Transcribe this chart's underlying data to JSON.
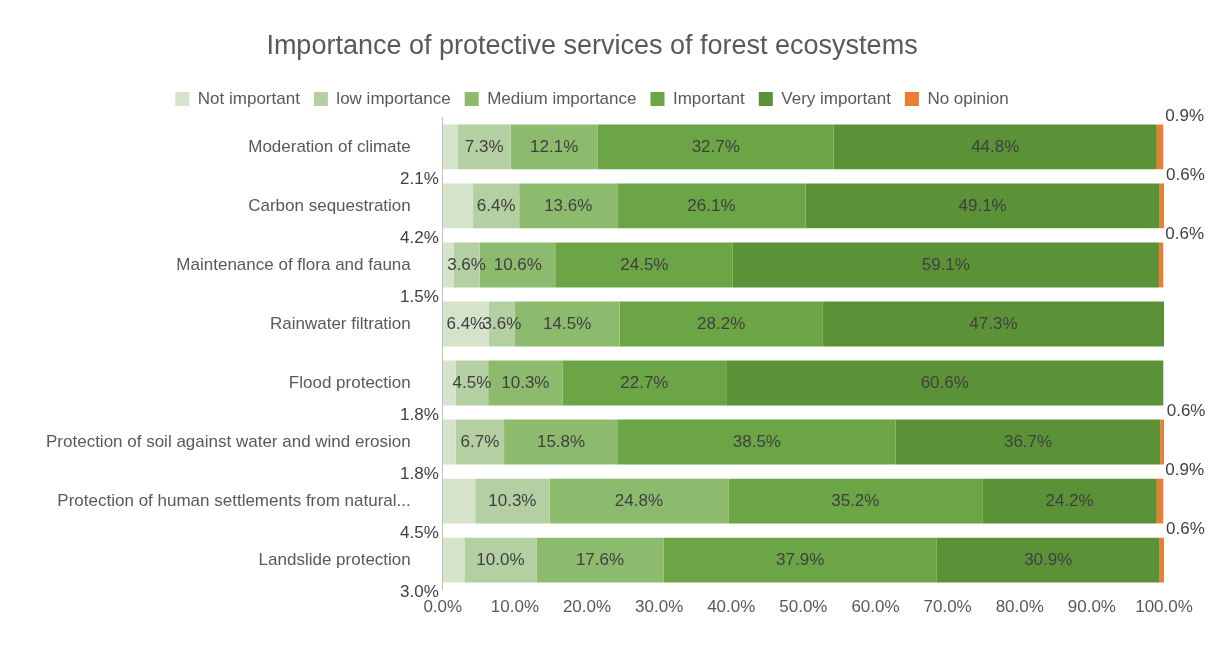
{
  "chart_data": {
    "type": "bar",
    "orientation": "horizontal",
    "stacked": true,
    "title": "Importance of protective services of forest ecosystems",
    "legend": "top",
    "grid": false,
    "data_labels": true,
    "categories": [
      "Moderation of climate",
      "Carbon sequestration",
      "Maintenance of flora and fauna",
      "Rainwater filtration",
      "Flood protection",
      "Protection of soil against water and wind erosion",
      "Protection of human settlements from natural...",
      "Landslide protection"
    ],
    "xlim": [
      0,
      100
    ],
    "xticks": [
      {
        "value": 0,
        "label": "0.0%"
      },
      {
        "value": 10,
        "label": "10.0%"
      },
      {
        "value": 20,
        "label": "20.0%"
      },
      {
        "value": 30,
        "label": "30.0%"
      },
      {
        "value": 40,
        "label": "40.0%"
      },
      {
        "value": 50,
        "label": "50.0%"
      },
      {
        "value": 60,
        "label": "60.0%"
      },
      {
        "value": 70,
        "label": "70.0%"
      },
      {
        "value": 80,
        "label": "80.0%"
      },
      {
        "value": 90,
        "label": "90.0%"
      },
      {
        "value": 100,
        "label": "100.0%"
      }
    ],
    "series": [
      {
        "name": "Not important",
        "color": "#d5e3cb",
        "values": [
          2.1,
          4.2,
          1.5,
          6.4,
          1.8,
          1.8,
          4.5,
          3.0
        ],
        "value_labels": [
          "2.1%",
          "4.2%",
          "1.5%",
          "6.4%",
          "1.8%",
          "1.8%",
          "4.5%",
          "3.0%"
        ]
      },
      {
        "name": "low importance",
        "color": "#b4cfa2",
        "values": [
          7.3,
          6.4,
          3.6,
          3.6,
          4.5,
          6.7,
          10.3,
          10.0
        ],
        "value_labels": [
          "7.3%",
          "6.4%",
          "3.6%",
          "3.6%",
          "4.5%",
          "6.7%",
          "10.3%",
          "10.0%"
        ]
      },
      {
        "name": "Medium importance",
        "color": "#8dbb6e",
        "values": [
          12.1,
          13.6,
          10.6,
          14.5,
          10.3,
          15.8,
          24.8,
          17.6
        ],
        "value_labels": [
          "12.1%",
          "13.6%",
          "10.6%",
          "14.5%",
          "10.3%",
          "15.8%",
          "24.8%",
          "17.6%"
        ]
      },
      {
        "name": "Important",
        "color": "#6ca545",
        "values": [
          32.7,
          26.1,
          24.5,
          28.2,
          22.7,
          38.5,
          35.2,
          37.9
        ],
        "value_labels": [
          "32.7%",
          "26.1%",
          "24.5%",
          "28.2%",
          "22.7%",
          "38.5%",
          "35.2%",
          "37.9%"
        ]
      },
      {
        "name": "Very important",
        "color": "#5b9237",
        "values": [
          44.8,
          49.1,
          59.1,
          47.3,
          60.6,
          36.7,
          24.2,
          30.9
        ],
        "value_labels": [
          "44.8%",
          "49.1%",
          "59.1%",
          "47.3%",
          "60.6%",
          "36.7%",
          "24.2%",
          "30.9%"
        ]
      },
      {
        "name": "No opinion",
        "color": "#ed7d31",
        "values": [
          0.9,
          0.6,
          0.6,
          null,
          null,
          0.6,
          0.9,
          0.6
        ],
        "value_labels": [
          "0.9%",
          "0.6%",
          "0.6%",
          null,
          null,
          "0.6%",
          "0.9%",
          "0.6%"
        ]
      }
    ]
  }
}
